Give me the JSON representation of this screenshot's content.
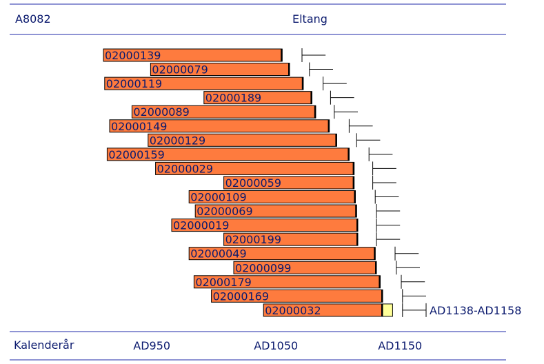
{
  "header": {
    "site_code": "A8082",
    "site_name": "Eltang"
  },
  "footer": {
    "axis_label": "Kalenderår"
  },
  "colors": {
    "bar": "#fe7b3e",
    "sapwood_estimate": "#ffff99",
    "axis_line": "#1f2aa8",
    "text": "#0b1a6e"
  },
  "chart_data": {
    "type": "bar",
    "orientation": "horizontal",
    "title": "Eltang",
    "xlabel": "Kalenderår",
    "xlim": [
      911,
      1225
    ],
    "x_ticks": [
      950,
      1050,
      1150
    ],
    "x_tick_labels": [
      "AD950",
      "AD1050",
      "AD1150"
    ],
    "grid": false,
    "series": [
      {
        "sample": "02000139",
        "start": 911,
        "end": 1055,
        "fell_start": 1071,
        "fell_end": 1090
      },
      {
        "sample": "02000079",
        "start": 949,
        "end": 1061,
        "fell_start": 1077,
        "fell_end": 1096
      },
      {
        "sample": "02000119",
        "start": 912,
        "end": 1072,
        "fell_start": 1088,
        "fell_end": 1107
      },
      {
        "sample": "02000189",
        "start": 992,
        "end": 1079,
        "fell_start": 1094,
        "fell_end": 1113
      },
      {
        "sample": "02000089",
        "start": 934,
        "end": 1082,
        "fell_start": 1097,
        "fell_end": 1116
      },
      {
        "sample": "02000149",
        "start": 916,
        "end": 1093,
        "fell_start": 1109,
        "fell_end": 1128
      },
      {
        "sample": "02000129",
        "start": 947,
        "end": 1099,
        "fell_start": 1115,
        "fell_end": 1134
      },
      {
        "sample": "02000159",
        "start": 914,
        "end": 1109,
        "fell_start": 1125,
        "fell_end": 1144
      },
      {
        "sample": "02000029",
        "start": 953,
        "end": 1113,
        "fell_start": 1128,
        "fell_end": 1147
      },
      {
        "sample": "02000059",
        "start": 1008,
        "end": 1113,
        "fell_start": 1128,
        "fell_end": 1147
      },
      {
        "sample": "02000109",
        "start": 980,
        "end": 1114,
        "fell_start": 1130,
        "fell_end": 1149
      },
      {
        "sample": "02000069",
        "start": 985,
        "end": 1115,
        "fell_start": 1131,
        "fell_end": 1150
      },
      {
        "sample": "02000019",
        "start": 966,
        "end": 1116,
        "fell_start": 1131,
        "fell_end": 1150
      },
      {
        "sample": "02000199",
        "start": 1008,
        "end": 1116,
        "fell_start": 1131,
        "fell_end": 1150
      },
      {
        "sample": "02000049",
        "start": 980,
        "end": 1130,
        "fell_start": 1146,
        "fell_end": 1165
      },
      {
        "sample": "02000099",
        "start": 1016,
        "end": 1131,
        "fell_start": 1147,
        "fell_end": 1166
      },
      {
        "sample": "02000179",
        "start": 984,
        "end": 1134,
        "fell_start": 1151,
        "fell_end": 1170
      },
      {
        "sample": "02000169",
        "start": 998,
        "end": 1136,
        "fell_start": 1152,
        "fell_end": 1171
      },
      {
        "sample": "02000032",
        "start": 1040,
        "end": 1136,
        "sapwood_end": 1144,
        "fell_start": 1152,
        "fell_end": 1171,
        "annotation": "AD1138-AD1158"
      }
    ]
  }
}
